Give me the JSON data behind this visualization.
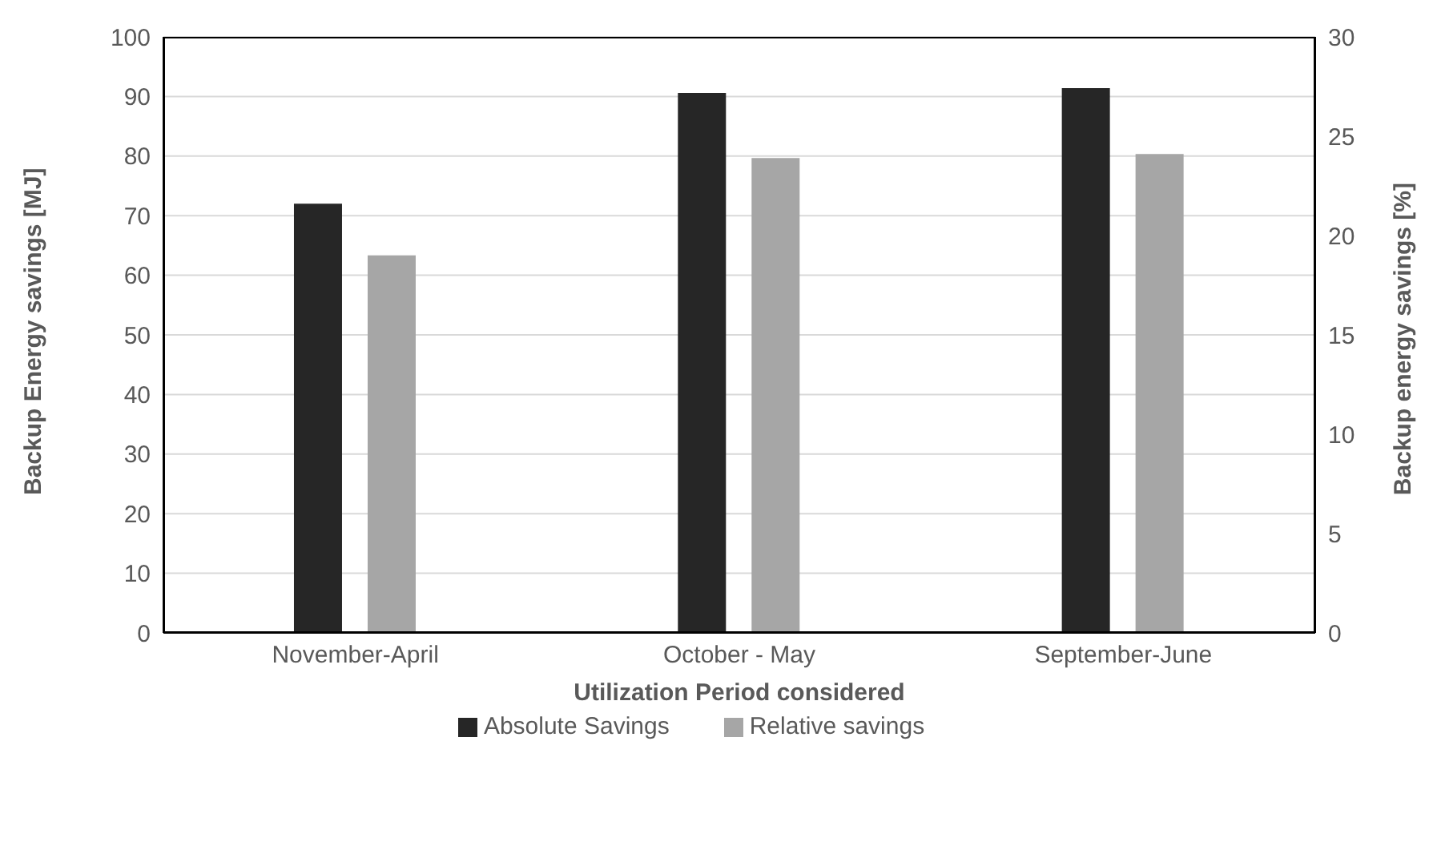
{
  "chart_data": {
    "type": "bar",
    "xlabel": "Utilization Period considered",
    "ylabel": "Backup Energy savings [MJ]",
    "y2label": "Backup energy savings [%]",
    "categories": [
      "November-April",
      "October - May",
      "September-June"
    ],
    "series": [
      {
        "name": "Absolute Savings",
        "color": "#262626",
        "values": [
          72.0,
          90.6,
          91.4
        ]
      },
      {
        "name": "Relative savings",
        "color": "#a6a6a6",
        "values": [
          19.0,
          23.9,
          24.1
        ],
        "axis": "y2"
      }
    ],
    "ylim": [
      0,
      100
    ],
    "yticks": [
      0,
      10,
      20,
      30,
      40,
      50,
      60,
      70,
      80,
      90,
      100
    ],
    "y2lim": [
      0,
      30
    ],
    "y2ticks": [
      0,
      5,
      10,
      15,
      20,
      25,
      30
    ],
    "grid": "y",
    "legend": "bottom"
  }
}
